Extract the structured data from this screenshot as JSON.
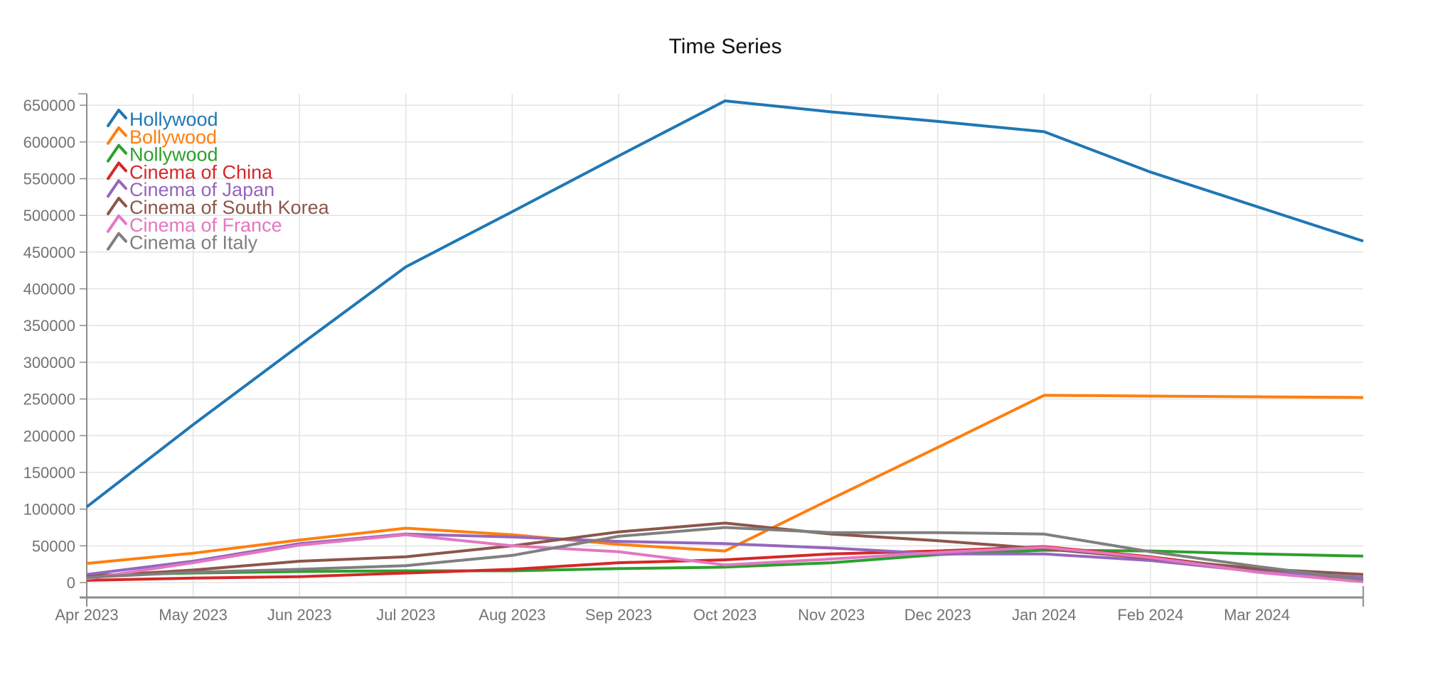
{
  "title": "Time Series",
  "chart_data": {
    "type": "line",
    "title": "Time Series",
    "xlabel": "",
    "ylabel": "",
    "x_labels": [
      "Apr 2023",
      "May 2023",
      "Jun 2023",
      "Jul 2023",
      "Aug 2023",
      "Sep 2023",
      "Oct 2023",
      "Nov 2023",
      "Dec 2023",
      "Jan 2024",
      "Feb 2024",
      "Mar 2024",
      ""
    ],
    "y_ticks": [
      0,
      50000,
      100000,
      150000,
      200000,
      250000,
      300000,
      350000,
      400000,
      450000,
      500000,
      550000,
      600000,
      650000
    ],
    "ylim": [
      0,
      672000
    ],
    "grid": true,
    "legend_position": "top-left",
    "series": [
      {
        "name": "Hollywood",
        "color": "#1f77b4",
        "values": [
          103000,
          215000,
          323000,
          430000,
          505000,
          581000,
          656000,
          641000,
          628000,
          614000,
          559000,
          512000,
          465000
        ]
      },
      {
        "name": "Bollywood",
        "color": "#ff7f0e",
        "values": [
          26000,
          40000,
          58000,
          74000,
          65000,
          52000,
          43000,
          114000,
          184000,
          255000,
          254000,
          253000,
          252000
        ]
      },
      {
        "name": "Nollywood",
        "color": "#2ca02c",
        "values": [
          10000,
          13000,
          15000,
          16000,
          16000,
          19000,
          21000,
          27000,
          38000,
          44000,
          43000,
          39000,
          36000
        ]
      },
      {
        "name": "Cinema of China",
        "color": "#d62728",
        "values": [
          3000,
          6000,
          8000,
          13000,
          18000,
          27000,
          31000,
          39000,
          43000,
          49000,
          35000,
          17000,
          3000
        ]
      },
      {
        "name": "Cinema of Japan",
        "color": "#9467bd",
        "values": [
          11000,
          29000,
          53000,
          66000,
          62000,
          56000,
          53000,
          47000,
          39000,
          39000,
          30000,
          15000,
          7000
        ]
      },
      {
        "name": "Cinema of South Korea",
        "color": "#8c564b",
        "values": [
          8000,
          17000,
          29000,
          35000,
          50000,
          69000,
          81000,
          66000,
          57000,
          46000,
          33000,
          19000,
          11000
        ]
      },
      {
        "name": "Cinema of France",
        "color": "#e377c2",
        "values": [
          5000,
          27000,
          51000,
          65000,
          50000,
          42000,
          24000,
          32000,
          41000,
          48000,
          34000,
          14000,
          1000
        ]
      },
      {
        "name": "Cinema of Italy",
        "color": "#7f7f7f",
        "values": [
          7000,
          14000,
          18000,
          23000,
          37000,
          63000,
          75000,
          68000,
          68000,
          66000,
          42000,
          22000,
          4000
        ]
      }
    ]
  }
}
